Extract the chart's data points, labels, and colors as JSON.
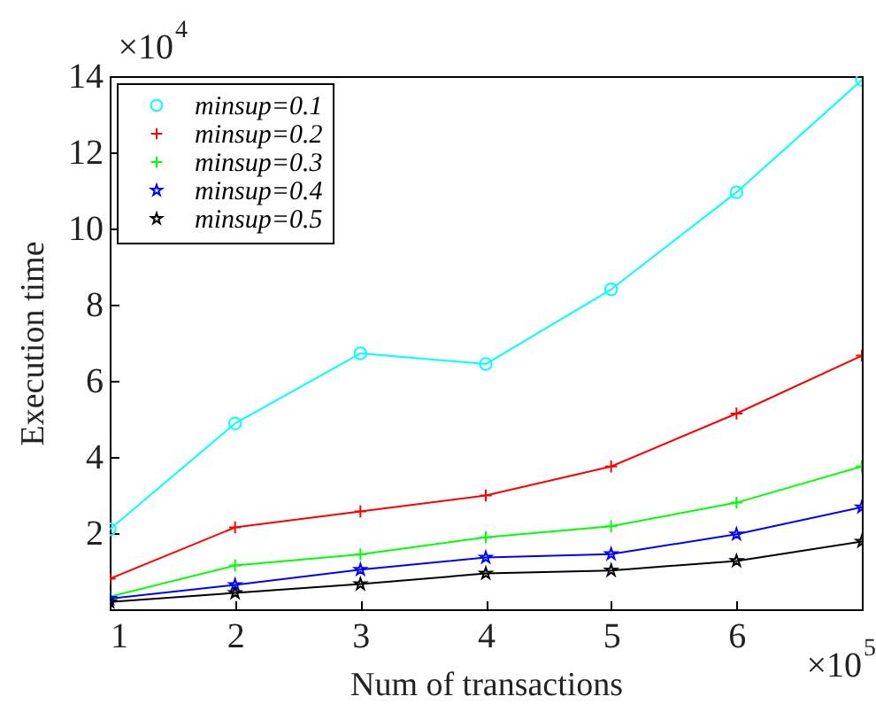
{
  "chart_data": {
    "type": "line",
    "xlabel": "Num of transactions",
    "ylabel": "Execution time",
    "x": [
      1,
      2,
      3,
      4,
      5,
      6,
      7
    ],
    "series": [
      {
        "name": "minsup=0.1",
        "color": "#00ffff",
        "marker": "circle",
        "values": [
          2.1,
          4.88,
          6.72,
          6.44,
          8.4,
          10.95,
          13.9
        ]
      },
      {
        "name": "minsup=0.2",
        "color": "#ff0000",
        "marker": "cross",
        "values": [
          0.8,
          2.15,
          2.57,
          2.99,
          3.75,
          5.14,
          6.66
        ]
      },
      {
        "name": "minsup=0.3",
        "color": "#00ff00",
        "marker": "cross",
        "values": [
          0.33,
          1.15,
          1.44,
          1.89,
          2.18,
          2.8,
          3.75
        ]
      },
      {
        "name": "minsup=0.4",
        "color": "#0000ff",
        "marker": "star",
        "values": [
          0.28,
          0.64,
          1.04,
          1.36,
          1.45,
          1.97,
          2.68
        ]
      },
      {
        "name": "minsup=0.5",
        "color": "#000000",
        "marker": "star",
        "values": [
          0.19,
          0.43,
          0.66,
          0.94,
          1.02,
          1.27,
          1.78
        ]
      }
    ],
    "xlim": [
      1,
      7
    ],
    "xticks": [
      1,
      2,
      3,
      4,
      5,
      6
    ],
    "ylim": [
      0,
      14
    ],
    "yticks": [
      2,
      4,
      6,
      8,
      10,
      12,
      14
    ],
    "annotations": [
      "×10$^{4}$",
      "×10$^{5}$"
    ],
    "legend": "top left",
    "grid": false,
    "line_style": "solid"
  }
}
